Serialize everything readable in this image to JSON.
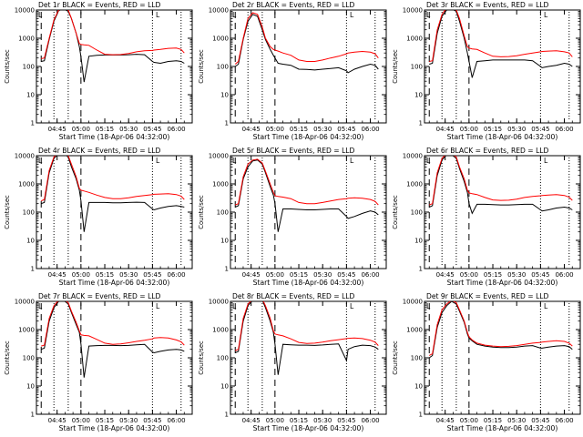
{
  "colors": {
    "events": "#000000",
    "lld": "#ff0000",
    "axis": "#000000",
    "background": "#ffffff"
  },
  "shared": {
    "xlabel": "Start Time (18-Apr-06 04:32:00)",
    "ylabel": "Counts/sec",
    "x_ticks": [
      "04:45",
      "05:00",
      "05:15",
      "05:30",
      "05:45",
      "06:00"
    ],
    "y_ticks": [
      "1",
      "10",
      "100",
      "1000",
      "10000"
    ],
    "corner_marker": "L"
  },
  "chart_data": [
    {
      "type": "line",
      "title": "Det 1r BLACK = Events, RED = LLD",
      "y_scale": "log",
      "ylim": [
        1,
        10000
      ],
      "xlabel": "Start Time (18-Apr-06 04:32:00)",
      "ylabel": "Counts/sec",
      "x": [
        "04:35",
        "04:37",
        "04:40",
        "04:43",
        "04:46",
        "04:49",
        "04:52",
        "04:54",
        "04:57",
        "04:59",
        "05:00",
        "05:02",
        "05:05",
        "05:10",
        "05:15",
        "05:20",
        "05:25",
        "05:30",
        "05:35",
        "05:40",
        "05:45",
        "05:46",
        "05:50",
        "05:55",
        "06:00",
        "06:03",
        "06:05"
      ],
      "series": [
        {
          "name": "Events",
          "values": [
            150,
            160,
            900,
            4000,
            9500,
            11000,
            9000,
            5000,
            1500,
            500,
            220,
            28,
            230,
            250,
            255,
            255,
            255,
            260,
            270,
            260,
            150,
            140,
            130,
            150,
            160,
            150,
            130
          ]
        },
        {
          "name": "LLD",
          "values": [
            190,
            200,
            1000,
            4500,
            10000,
            12000,
            10000,
            5000,
            1500,
            650,
            600,
            580,
            560,
            380,
            270,
            260,
            265,
            290,
            330,
            360,
            370,
            380,
            400,
            440,
            450,
            400,
            300
          ]
        }
      ],
      "markers": {
        "dashed": [
          "04:35",
          "05:00"
        ],
        "dotted": [
          "04:43",
          "04:52",
          "05:45",
          "06:03"
        ]
      }
    },
    {
      "type": "line",
      "title": "Det 2r BLACK = Events, RED = LLD",
      "y_scale": "log",
      "ylim": [
        1,
        10000
      ],
      "xlabel": "Start Time (18-Apr-06 04:32:00)",
      "ylabel": "Counts/sec",
      "x": [
        "04:35",
        "04:37",
        "04:40",
        "04:43",
        "04:46",
        "04:49",
        "04:52",
        "04:54",
        "04:57",
        "04:59",
        "05:00",
        "05:02",
        "05:05",
        "05:10",
        "05:15",
        "05:20",
        "05:25",
        "05:30",
        "05:35",
        "05:40",
        "05:45",
        "05:46",
        "05:50",
        "05:55",
        "06:00",
        "06:03",
        "06:05"
      ],
      "series": [
        {
          "name": "Events",
          "values": [
            100,
            120,
            900,
            4000,
            7000,
            6000,
            2000,
            900,
            400,
            250,
            200,
            130,
            120,
            110,
            80,
            78,
            75,
            80,
            85,
            90,
            70,
            60,
            80,
            100,
            120,
            110,
            80
          ]
        },
        {
          "name": "LLD",
          "values": [
            120,
            150,
            1000,
            5000,
            8000,
            7000,
            2500,
            1000,
            500,
            400,
            380,
            350,
            300,
            250,
            170,
            150,
            150,
            170,
            200,
            230,
            280,
            300,
            320,
            340,
            320,
            280,
            200
          ]
        }
      ],
      "markers": {
        "dashed": [
          "04:35",
          "05:00"
        ],
        "dotted": [
          "04:43",
          "04:52",
          "05:45",
          "06:03"
        ]
      }
    },
    {
      "type": "line",
      "title": "Det 3r BLACK = Events, RED = LLD",
      "y_scale": "log",
      "ylim": [
        1,
        10000
      ],
      "xlabel": "Start Time (18-Apr-06 04:32:00)",
      "ylabel": "Counts/sec",
      "x": [
        "04:35",
        "04:37",
        "04:40",
        "04:43",
        "04:46",
        "04:49",
        "04:52",
        "04:54",
        "04:57",
        "04:59",
        "05:00",
        "05:02",
        "05:05",
        "05:10",
        "05:15",
        "05:20",
        "05:25",
        "05:30",
        "05:35",
        "05:40",
        "05:45",
        "05:46",
        "05:50",
        "05:55",
        "06:00",
        "06:03",
        "06:05"
      ],
      "series": [
        {
          "name": "Events",
          "values": [
            120,
            130,
            1500,
            6000,
            10000,
            11000,
            9000,
            4000,
            1000,
            300,
            150,
            40,
            150,
            160,
            170,
            170,
            170,
            170,
            170,
            160,
            100,
            90,
            100,
            110,
            130,
            120,
            100
          ]
        },
        {
          "name": "LLD",
          "values": [
            150,
            160,
            2000,
            7000,
            12000,
            12000,
            10000,
            5000,
            1200,
            500,
            450,
            420,
            400,
            300,
            230,
            220,
            225,
            240,
            270,
            300,
            330,
            340,
            350,
            360,
            330,
            300,
            220
          ]
        }
      ],
      "markers": {
        "dashed": [
          "04:35",
          "05:00"
        ],
        "dotted": [
          "04:43",
          "04:52",
          "05:45",
          "06:03"
        ]
      }
    },
    {
      "type": "line",
      "title": "Det 4r BLACK = Events, RED = LLD",
      "y_scale": "log",
      "ylim": [
        1,
        10000
      ],
      "xlabel": "Start Time (18-Apr-06 04:32:00)",
      "ylabel": "Counts/sec",
      "x": [
        "04:35",
        "04:37",
        "04:40",
        "04:43",
        "04:46",
        "04:49",
        "04:52",
        "04:54",
        "04:57",
        "04:59",
        "05:00",
        "05:02",
        "05:05",
        "05:10",
        "05:15",
        "05:20",
        "05:25",
        "05:30",
        "05:35",
        "05:40",
        "05:45",
        "05:46",
        "05:50",
        "05:55",
        "06:00",
        "06:03",
        "06:05"
      ],
      "series": [
        {
          "name": "Events",
          "values": [
            200,
            220,
            2500,
            8000,
            12000,
            12000,
            9000,
            4000,
            1500,
            600,
            250,
            20,
            220,
            220,
            220,
            215,
            215,
            220,
            225,
            220,
            130,
            120,
            140,
            160,
            170,
            160,
            150
          ]
        },
        {
          "name": "LLD",
          "values": [
            250,
            280,
            3000,
            9000,
            13000,
            13000,
            10000,
            5000,
            1800,
            700,
            600,
            560,
            500,
            400,
            330,
            300,
            300,
            320,
            360,
            390,
            420,
            430,
            440,
            450,
            420,
            370,
            280
          ]
        }
      ],
      "markers": {
        "dashed": [
          "04:35",
          "05:00"
        ],
        "dotted": [
          "04:43",
          "04:52",
          "05:45",
          "06:03"
        ]
      }
    },
    {
      "type": "line",
      "title": "Det 5r BLACK = Events, RED = LLD",
      "y_scale": "log",
      "ylim": [
        1,
        10000
      ],
      "xlabel": "Start Time (18-Apr-06 04:32:00)",
      "ylabel": "Counts/sec",
      "x": [
        "04:35",
        "04:37",
        "04:40",
        "04:43",
        "04:46",
        "04:49",
        "04:52",
        "04:54",
        "04:57",
        "04:59",
        "05:00",
        "05:02",
        "05:05",
        "05:10",
        "05:15",
        "05:20",
        "05:25",
        "05:30",
        "05:35",
        "05:40",
        "05:45",
        "05:46",
        "05:50",
        "05:55",
        "06:00",
        "06:03",
        "06:05"
      ],
      "series": [
        {
          "name": "Events",
          "values": [
            150,
            170,
            1500,
            4000,
            6500,
            7000,
            5000,
            2500,
            800,
            400,
            200,
            20,
            130,
            130,
            125,
            120,
            120,
            125,
            130,
            130,
            70,
            60,
            70,
            90,
            110,
            100,
            80
          ]
        },
        {
          "name": "LLD",
          "values": [
            180,
            200,
            1800,
            5000,
            7000,
            7500,
            5500,
            2800,
            1000,
            500,
            380,
            360,
            340,
            300,
            220,
            200,
            200,
            220,
            250,
            280,
            300,
            310,
            320,
            310,
            280,
            240,
            180
          ]
        }
      ],
      "markers": {
        "dashed": [
          "04:35",
          "05:00"
        ],
        "dotted": [
          "04:43",
          "04:52",
          "05:45",
          "06:03"
        ]
      }
    },
    {
      "type": "line",
      "title": "Det 6r BLACK = Events, RED = LLD",
      "y_scale": "log",
      "ylim": [
        1,
        10000
      ],
      "xlabel": "Start Time (18-Apr-06 04:32:00)",
      "ylabel": "Counts/sec",
      "x": [
        "04:35",
        "04:37",
        "04:40",
        "04:43",
        "04:46",
        "04:49",
        "04:52",
        "04:54",
        "04:57",
        "04:59",
        "05:00",
        "05:02",
        "05:05",
        "05:10",
        "05:15",
        "05:20",
        "05:25",
        "05:30",
        "05:35",
        "05:40",
        "05:45",
        "05:46",
        "05:50",
        "05:55",
        "06:00",
        "06:03",
        "06:05"
      ],
      "series": [
        {
          "name": "Events",
          "values": [
            150,
            170,
            2000,
            7000,
            11000,
            11000,
            8000,
            3500,
            1200,
            500,
            200,
            90,
            190,
            190,
            185,
            180,
            180,
            185,
            190,
            190,
            120,
            110,
            120,
            140,
            150,
            140,
            120
          ]
        },
        {
          "name": "LLD",
          "values": [
            180,
            200,
            2500,
            8000,
            12000,
            12000,
            9000,
            4000,
            1500,
            600,
            480,
            450,
            420,
            330,
            270,
            260,
            265,
            290,
            330,
            360,
            380,
            390,
            400,
            420,
            390,
            340,
            260
          ]
        }
      ],
      "markers": {
        "dashed": [
          "04:35",
          "05:00"
        ],
        "dotted": [
          "04:43",
          "04:52",
          "05:45",
          "06:03"
        ]
      }
    },
    {
      "type": "line",
      "title": "Det 7r BLACK = Events, RED = LLD",
      "y_scale": "log",
      "ylim": [
        1,
        10000
      ],
      "xlabel": "Start Time (18-Apr-06 04:32:00)",
      "ylabel": "Counts/sec",
      "x": [
        "04:35",
        "04:37",
        "04:40",
        "04:43",
        "04:46",
        "04:49",
        "04:52",
        "04:54",
        "04:57",
        "04:59",
        "05:00",
        "05:02",
        "05:05",
        "05:10",
        "05:15",
        "05:20",
        "05:25",
        "05:30",
        "05:35",
        "05:40",
        "05:45",
        "05:46",
        "05:50",
        "05:55",
        "06:00",
        "06:03",
        "06:05"
      ],
      "series": [
        {
          "name": "Events",
          "values": [
            200,
            220,
            2000,
            6000,
            10000,
            11000,
            8000,
            4000,
            1500,
            800,
            300,
            20,
            260,
            270,
            275,
            275,
            270,
            275,
            290,
            300,
            160,
            150,
            170,
            190,
            200,
            190,
            170
          ]
        },
        {
          "name": "LLD",
          "values": [
            260,
            280,
            2500,
            7000,
            11000,
            12000,
            9000,
            4500,
            1800,
            900,
            650,
            620,
            600,
            450,
            330,
            300,
            310,
            340,
            380,
            420,
            470,
            500,
            520,
            500,
            430,
            370,
            280
          ]
        }
      ],
      "markers": {
        "dashed": [
          "04:35",
          "05:00"
        ],
        "dotted": [
          "04:43",
          "04:52",
          "05:45",
          "06:03"
        ]
      }
    },
    {
      "type": "line",
      "title": "Det 8r BLACK = Events, RED = LLD",
      "y_scale": "log",
      "ylim": [
        1,
        10000
      ],
      "xlabel": "Start Time (18-Apr-06 04:32:00)",
      "ylabel": "Counts/sec",
      "x": [
        "04:35",
        "04:37",
        "04:40",
        "04:43",
        "04:46",
        "04:49",
        "04:52",
        "04:54",
        "04:57",
        "04:59",
        "05:00",
        "05:02",
        "05:05",
        "05:10",
        "05:15",
        "05:20",
        "05:25",
        "05:30",
        "05:35",
        "05:40",
        "05:45",
        "05:46",
        "05:50",
        "05:55",
        "06:00",
        "06:03",
        "06:05"
      ],
      "series": [
        {
          "name": "Events",
          "values": [
            150,
            170,
            2000,
            7000,
            11000,
            13000,
            11000,
            6000,
            2000,
            800,
            300,
            25,
            300,
            290,
            280,
            280,
            275,
            285,
            300,
            310,
            80,
            200,
            250,
            280,
            270,
            240,
            200
          ]
        },
        {
          "name": "LLD",
          "values": [
            180,
            200,
            2500,
            8000,
            12000,
            14000,
            12000,
            7000,
            2500,
            900,
            700,
            650,
            600,
            470,
            350,
            320,
            330,
            360,
            400,
            440,
            480,
            490,
            500,
            480,
            420,
            360,
            270
          ]
        }
      ],
      "markers": {
        "dashed": [
          "04:35",
          "05:00"
        ],
        "dotted": [
          "04:43",
          "04:52",
          "05:45",
          "06:03"
        ]
      }
    },
    {
      "type": "line",
      "title": "Det 9r BLACK = Events, RED = LLD",
      "y_scale": "log",
      "ylim": [
        1,
        10000
      ],
      "xlabel": "Start Time (18-Apr-06 04:32:00)",
      "ylabel": "Counts/sec",
      "x": [
        "04:35",
        "04:37",
        "04:40",
        "04:43",
        "04:46",
        "04:49",
        "04:52",
        "04:54",
        "04:57",
        "04:59",
        "05:00",
        "05:02",
        "05:05",
        "05:10",
        "05:15",
        "05:20",
        "05:25",
        "05:30",
        "05:35",
        "05:40",
        "05:45",
        "05:46",
        "05:50",
        "05:55",
        "06:00",
        "06:03",
        "06:05"
      ],
      "series": [
        {
          "name": "Events",
          "values": [
            100,
            120,
            1200,
            4000,
            7000,
            10000,
            8000,
            4500,
            1800,
            700,
            500,
            400,
            300,
            260,
            240,
            230,
            230,
            240,
            260,
            270,
            220,
            220,
            240,
            260,
            270,
            250,
            200
          ]
        },
        {
          "name": "LLD",
          "values": [
            120,
            140,
            1500,
            5000,
            8000,
            11000,
            9000,
            5000,
            2000,
            800,
            550,
            430,
            330,
            280,
            260,
            250,
            255,
            270,
            300,
            330,
            350,
            360,
            380,
            400,
            380,
            330,
            260
          ]
        }
      ],
      "markers": {
        "dashed": [
          "04:35",
          "05:00"
        ],
        "dotted": [
          "04:43",
          "04:52",
          "05:45",
          "06:03"
        ]
      }
    }
  ]
}
